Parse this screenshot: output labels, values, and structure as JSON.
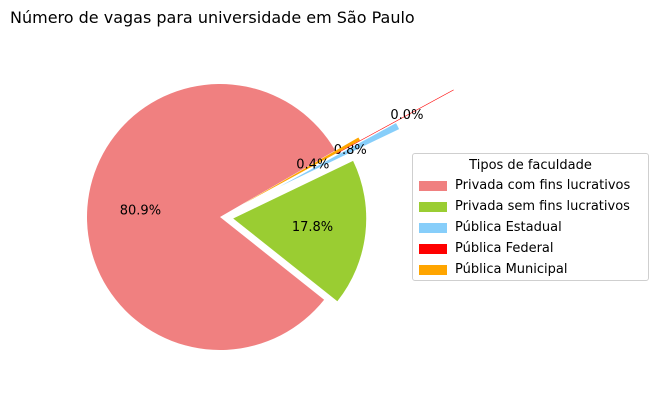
{
  "chart_data": {
    "type": "pie",
    "title": "Número de vagas para universidade em São Paulo",
    "legend_title": "Tipos de faculdade",
    "legend_position": "center-right",
    "categories": [
      "Privada com fins lucrativos",
      "Privada sem fins lucrativos",
      "Pública Estadual",
      "Pública Federal",
      "Pública Municipal"
    ],
    "values": [
      80.9,
      17.8,
      0.8,
      0.0,
      0.4
    ],
    "labels": [
      "80.9%",
      "17.8%",
      "0.8%",
      "0.0%",
      "0.4%"
    ],
    "colors": [
      "#f08080",
      "#9acd32",
      "#87cefa",
      "#ff0000",
      "#ffa500"
    ],
    "explode": [
      0,
      0.1,
      0.5,
      1.0,
      0.2
    ],
    "start_angle_deg": 30,
    "direction": "counterclockwise"
  }
}
